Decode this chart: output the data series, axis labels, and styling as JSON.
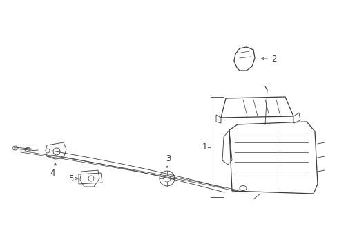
{
  "bg_color": "#ffffff",
  "line_color": "#3a3a3a",
  "fig_width": 4.89,
  "fig_height": 3.6,
  "dpi": 100,
  "label_fontsize": 8.5
}
